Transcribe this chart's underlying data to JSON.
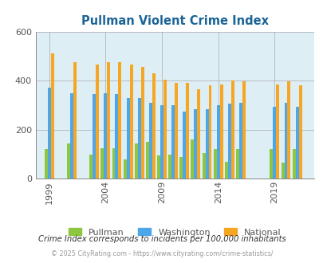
{
  "title": "Pullman Violent Crime Index",
  "years": [
    1999,
    2001,
    2003,
    2004,
    2005,
    2006,
    2007,
    2008,
    2009,
    2010,
    2011,
    2012,
    2013,
    2014,
    2015,
    2016,
    2019,
    2020,
    2021
  ],
  "pullman_vals": [
    120,
    145,
    100,
    125,
    125,
    80,
    145,
    150,
    95,
    100,
    90,
    160,
    105,
    120,
    70,
    120,
    120,
    65,
    120
  ],
  "washington_vals": [
    370,
    350,
    345,
    350,
    345,
    330,
    330,
    310,
    300,
    300,
    275,
    285,
    285,
    300,
    305,
    310,
    295,
    310,
    295
  ],
  "national_vals": [
    510,
    475,
    465,
    475,
    475,
    465,
    455,
    430,
    405,
    390,
    390,
    365,
    380,
    385,
    400,
    398,
    385,
    398,
    380
  ],
  "x_tick_years": [
    1999,
    2004,
    2009,
    2014,
    2019
  ],
  "color_pullman": "#8dc63f",
  "color_washington": "#4da6e8",
  "color_national": "#f5a623",
  "bg_color": "#deeef5",
  "title_color": "#1a6496",
  "subtitle": "Crime Index corresponds to incidents per 100,000 inhabitants",
  "footer": "© 2025 CityRating.com - https://www.cityrating.com/crime-statistics/",
  "ylim": [
    0,
    600
  ],
  "yticks": [
    0,
    200,
    400,
    600
  ],
  "xlim_min": 1997.8,
  "xlim_max": 2022.5,
  "bar_width": 0.28
}
